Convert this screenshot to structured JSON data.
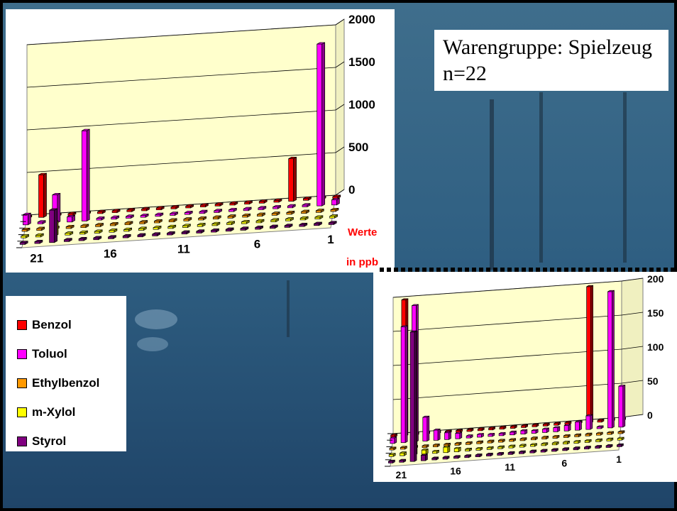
{
  "title": {
    "line1": "Warengruppe: Spielzeug",
    "line2": "n=22"
  },
  "units_label": {
    "line1": "Werte",
    "line2": "in ppb"
  },
  "legend": [
    {
      "label": "Benzol",
      "color": "#ff0000"
    },
    {
      "label": "Toluol",
      "color": "#ff00ff"
    },
    {
      "label": "Ethylbenzol",
      "color": "#ff9900"
    },
    {
      "label": "m-Xylol",
      "color": "#ffff00"
    },
    {
      "label": "Styrol",
      "color": "#800080"
    }
  ],
  "chart_data": [
    {
      "type": "bar",
      "style": "3d-column",
      "categories": [
        "1",
        "2",
        "3",
        "4",
        "5",
        "6",
        "7",
        "8",
        "9",
        "10",
        "11",
        "12",
        "13",
        "14",
        "15",
        "16",
        "17",
        "18",
        "19",
        "20",
        "21",
        "22"
      ],
      "x_tick_labels": [
        "1",
        "6",
        "11",
        "16",
        "21"
      ],
      "y_ticks": [
        "0",
        "500",
        "1000",
        "1500",
        "2000"
      ],
      "ylim": [
        0,
        2000
      ],
      "series": [
        {
          "name": "Benzol",
          "values": [
            0,
            0,
            0,
            500,
            0,
            0,
            0,
            0,
            0,
            0,
            0,
            0,
            0,
            0,
            0,
            0,
            0,
            0,
            0,
            0,
            500,
            0
          ]
        },
        {
          "name": "Toluol",
          "values": [
            60,
            1900,
            0,
            0,
            0,
            0,
            0,
            0,
            0,
            0,
            0,
            0,
            0,
            0,
            0,
            0,
            0,
            1060,
            60,
            330,
            0,
            120
          ]
        },
        {
          "name": "Ethylbenzol",
          "values": [
            0,
            0,
            0,
            0,
            0,
            0,
            0,
            0,
            0,
            0,
            0,
            0,
            0,
            0,
            0,
            0,
            0,
            0,
            0,
            0,
            0,
            0
          ]
        },
        {
          "name": "m-Xylol",
          "values": [
            0,
            0,
            0,
            0,
            0,
            0,
            0,
            0,
            0,
            0,
            0,
            0,
            0,
            0,
            0,
            0,
            0,
            0,
            0,
            160,
            0,
            0
          ]
        },
        {
          "name": "Styrol",
          "values": [
            0,
            0,
            0,
            0,
            0,
            0,
            0,
            0,
            0,
            0,
            0,
            0,
            0,
            0,
            0,
            0,
            0,
            0,
            0,
            380,
            0,
            0
          ]
        }
      ]
    },
    {
      "type": "bar",
      "style": "3d-column",
      "categories": [
        "1",
        "2",
        "3",
        "4",
        "5",
        "6",
        "7",
        "8",
        "9",
        "10",
        "11",
        "12",
        "13",
        "14",
        "15",
        "16",
        "17",
        "18",
        "19",
        "20",
        "21",
        "22"
      ],
      "x_tick_labels": [
        "1",
        "6",
        "11",
        "16",
        "21"
      ],
      "y_ticks": [
        "0",
        "50",
        "100",
        "150",
        "200"
      ],
      "ylim": [
        0,
        200
      ],
      "series": [
        {
          "name": "Benzol",
          "values": [
            0,
            0,
            0,
            200,
            0,
            0,
            0,
            0,
            0,
            0,
            0,
            0,
            0,
            0,
            0,
            0,
            0,
            0,
            0,
            0,
            200,
            0
          ]
        },
        {
          "name": "Toluol",
          "values": [
            60,
            200,
            0,
            20,
            12,
            8,
            6,
            5,
            4,
            5,
            4,
            3,
            3,
            4,
            3,
            8,
            10,
            15,
            35,
            200,
            170,
            8
          ]
        },
        {
          "name": "Ethylbenzol",
          "values": [
            0,
            0,
            0,
            0,
            0,
            0,
            0,
            0,
            0,
            0,
            0,
            0,
            0,
            0,
            0,
            0,
            0,
            0,
            0,
            0,
            0,
            0
          ]
        },
        {
          "name": "m-Xylol",
          "values": [
            0,
            0,
            0,
            0,
            0,
            0,
            0,
            0,
            0,
            0,
            0,
            0,
            0,
            0,
            0,
            5,
            8,
            3,
            6,
            180,
            4,
            3
          ]
        },
        {
          "name": "Styrol",
          "values": [
            0,
            0,
            0,
            0,
            0,
            0,
            0,
            0,
            0,
            0,
            0,
            0,
            0,
            0,
            0,
            0,
            0,
            0,
            8,
            190,
            0,
            0
          ]
        }
      ]
    }
  ]
}
